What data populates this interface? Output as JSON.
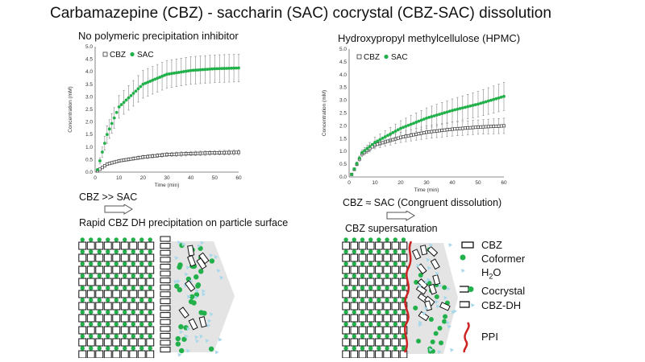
{
  "title": "Carbamazepine (CBZ) - saccharin (SAC) cocrystal (CBZ-SAC) dissolution",
  "left": {
    "subtitle": "No polymeric precipitation inhibitor",
    "relation": "CBZ >> SAC",
    "mechanism": "Rapid CBZ DH precipitation on particle surface"
  },
  "right": {
    "subtitle": "Hydroxypropyl methylcellulose (HPMC)",
    "relation": "CBZ ≈ SAC (Congruent dissolution)",
    "mechanism": "CBZ supersaturation"
  },
  "legend": {
    "cbz": "CBZ",
    "coformer": "Coformer",
    "water_h": "H",
    "water_sub": "2",
    "water_o": "O",
    "cocrystal": "Cocrystal",
    "cbz_dh": "CBZ-DH",
    "ppi": "PPI"
  },
  "colors": {
    "sac": "#22b04a",
    "cbz": "#444444",
    "water": "#a8d8ea",
    "ppi": "#cc2222",
    "boundary": "#d0d0d0"
  },
  "chart_data": [
    {
      "type": "scatter",
      "title": "No polymeric precipitation inhibitor",
      "xlabel": "Time (min)",
      "ylabel": "Concentration (mM)",
      "xlim": [
        0,
        60
      ],
      "ylim": [
        0,
        5
      ],
      "xticks": [
        0,
        10,
        20,
        30,
        40,
        50,
        60
      ],
      "yticks": [
        0.0,
        0.5,
        1.0,
        1.5,
        2.0,
        2.5,
        3.0,
        3.5,
        4.0,
        4.5,
        5.0
      ],
      "legend": [
        "CBZ",
        "SAC"
      ],
      "series": [
        {
          "name": "CBZ",
          "marker": "open-square",
          "x": [
            1,
            5,
            10,
            20,
            30,
            40,
            50,
            60
          ],
          "y": [
            0.05,
            0.32,
            0.45,
            0.6,
            0.7,
            0.74,
            0.77,
            0.79
          ],
          "err": [
            0.02,
            0.05,
            0.06,
            0.07,
            0.08,
            0.09,
            0.09,
            0.1
          ]
        },
        {
          "name": "SAC",
          "marker": "filled-circle",
          "x": [
            1,
            5,
            10,
            20,
            30,
            40,
            50,
            60
          ],
          "y": [
            0.1,
            1.5,
            2.6,
            3.5,
            3.9,
            4.05,
            4.12,
            4.15
          ],
          "err": [
            0.05,
            0.35,
            0.45,
            0.55,
            0.55,
            0.55,
            0.55,
            0.55
          ]
        }
      ]
    },
    {
      "type": "scatter",
      "title": "Hydroxypropyl methylcellulose (HPMC)",
      "xlabel": "Time (min)",
      "ylabel": "Concentration (mM)",
      "xlim": [
        0,
        60
      ],
      "ylim": [
        0,
        5
      ],
      "xticks": [
        0,
        10,
        20,
        30,
        40,
        50,
        60
      ],
      "yticks": [
        0.0,
        0.5,
        1.0,
        1.5,
        2.0,
        2.5,
        3.0,
        3.5,
        4.0,
        4.5,
        5.0
      ],
      "legend": [
        "CBZ",
        "SAC"
      ],
      "series": [
        {
          "name": "CBZ",
          "marker": "open-square",
          "x": [
            1,
            5,
            10,
            20,
            30,
            40,
            50,
            60
          ],
          "y": [
            0.1,
            0.9,
            1.25,
            1.55,
            1.75,
            1.87,
            1.95,
            2.0
          ],
          "err": [
            0.03,
            0.1,
            0.15,
            0.2,
            0.25,
            0.27,
            0.28,
            0.3
          ]
        },
        {
          "name": "SAC",
          "marker": "filled-circle",
          "x": [
            1,
            5,
            10,
            20,
            30,
            40,
            50,
            60
          ],
          "y": [
            0.1,
            0.95,
            1.35,
            1.9,
            2.3,
            2.6,
            2.85,
            3.15
          ],
          "err": [
            0.03,
            0.1,
            0.2,
            0.3,
            0.4,
            0.45,
            0.5,
            0.55
          ]
        }
      ]
    }
  ]
}
